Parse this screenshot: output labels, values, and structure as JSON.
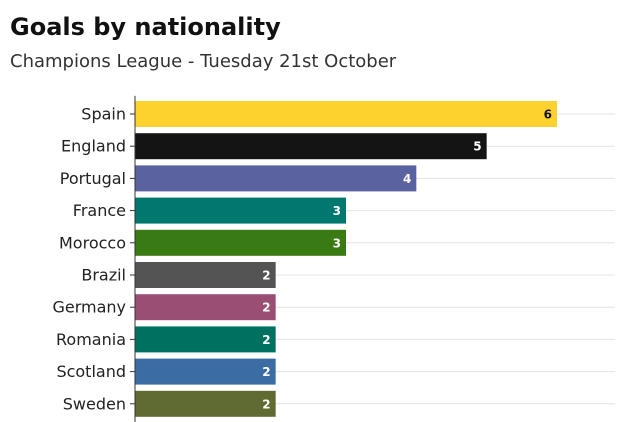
{
  "chart_data": {
    "type": "bar",
    "orientation": "horizontal",
    "title": "Goals by nationality",
    "subtitle": "Champions League - Tuesday 21st October",
    "categories": [
      "Spain",
      "England",
      "Portugal",
      "France",
      "Morocco",
      "Brazil",
      "Germany",
      "Romania",
      "Scotland",
      "Sweden"
    ],
    "values": [
      6,
      5,
      4,
      3,
      3,
      2,
      2,
      2,
      2,
      2
    ],
    "colors": [
      "#fdd22e",
      "#141414",
      "#5b62a0",
      "#00776f",
      "#3a7a12",
      "#545454",
      "#9b4e74",
      "#007161",
      "#3b6ca4",
      "#5f6b32"
    ]
  }
}
